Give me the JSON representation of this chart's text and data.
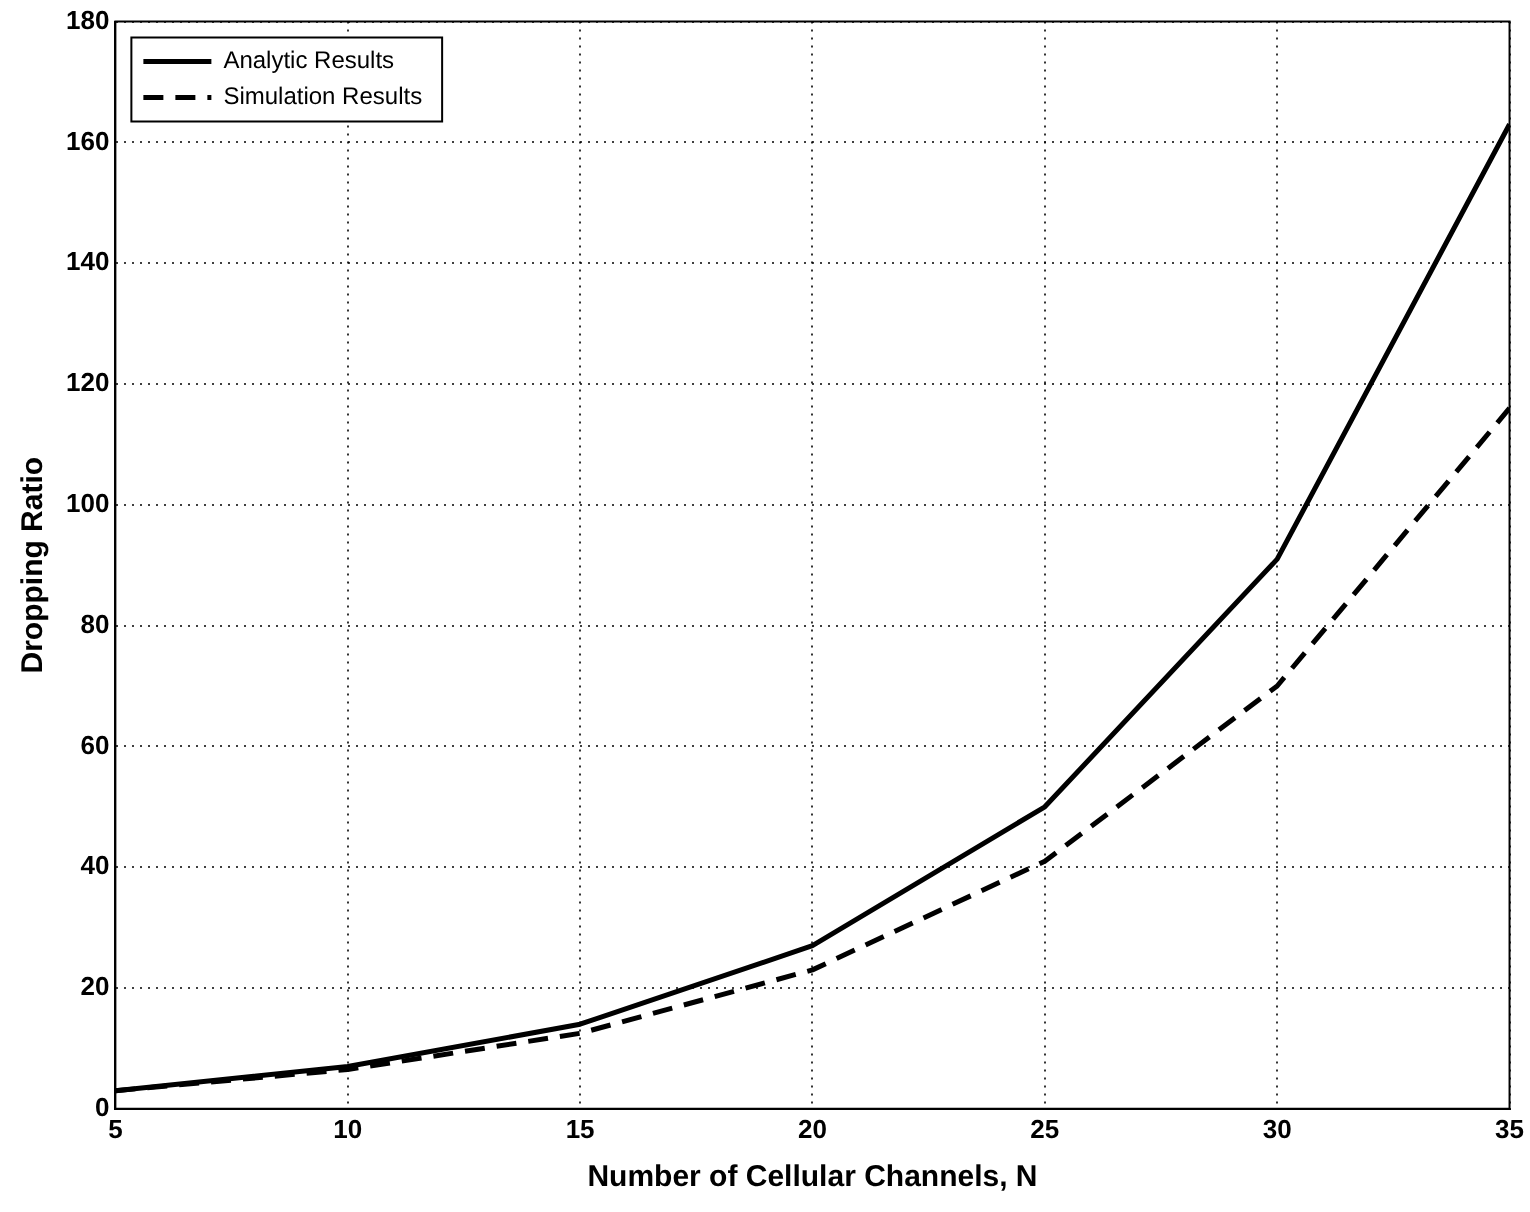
{
  "chart_data": {
    "type": "line",
    "xlabel": "Number of Cellular Channels, N",
    "ylabel": "Dropping Ratio",
    "x": [
      5,
      10,
      15,
      20,
      25,
      30,
      35
    ],
    "series": [
      {
        "name": "Analytic Results",
        "color": "#000000",
        "line_style": "solid",
        "values": [
          3,
          7,
          14,
          27,
          50,
          91,
          163
        ]
      },
      {
        "name": "Simulation Results",
        "color": "#000000",
        "line_style": "dashed",
        "values": [
          3,
          6.5,
          12.5,
          23,
          41,
          70,
          116
        ]
      }
    ],
    "xlim": [
      5,
      35
    ],
    "xticks": [
      5,
      10,
      15,
      20,
      25,
      30,
      35
    ],
    "ylim": [
      0,
      180
    ],
    "yticks": [
      0,
      20,
      40,
      60,
      80,
      100,
      120,
      140,
      160,
      180
    ],
    "grid": true,
    "legend": "top left",
    "marker": "none"
  }
}
